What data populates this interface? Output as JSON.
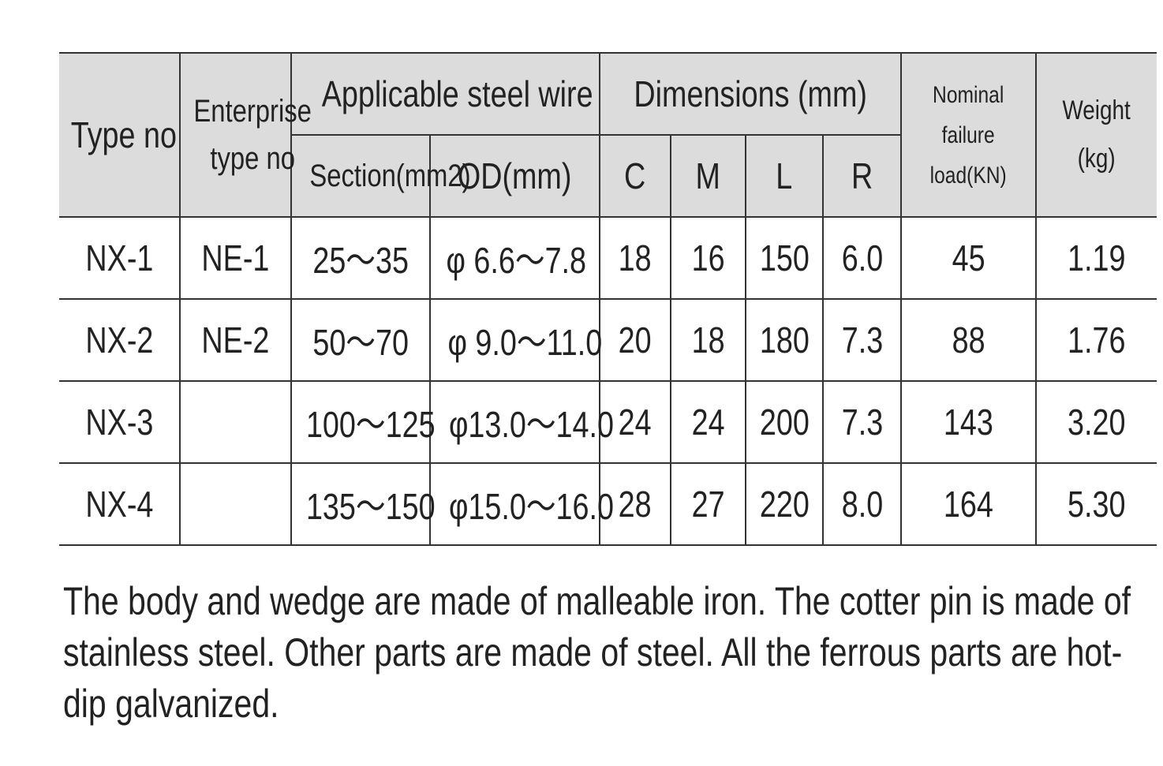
{
  "table": {
    "header": {
      "type_no": "Type no",
      "enterprise_type_no": [
        "Enterprise",
        "type no"
      ],
      "applicable_steel_wire": "Applicable steel wire",
      "section": "Section(mm2)",
      "od": "OD(mm)",
      "dimensions": "Dimensions (mm)",
      "c": "C",
      "m": "M",
      "l": "L",
      "r": "R",
      "nominal_failure_load": [
        "Nominal",
        "failure",
        "load(KN)"
      ],
      "weight": [
        "Weight",
        "(kg)"
      ]
    },
    "rows": [
      {
        "type_no": "NX-1",
        "enterprise_type_no": "NE-1",
        "section": "25～35",
        "od": "φ 6.6～7.8",
        "c": "18",
        "m": "16",
        "l": "150",
        "r": "6.0",
        "load": "45",
        "weight": "1.19"
      },
      {
        "type_no": "NX-2",
        "enterprise_type_no": "NE-2",
        "section": "50～70",
        "od": "φ 9.0～11.0",
        "c": "20",
        "m": "18",
        "l": "180",
        "r": "7.3",
        "load": "88",
        "weight": "1.76"
      },
      {
        "type_no": "NX-3",
        "section": "100～125",
        "od": "φ13.0～14.0",
        "c": "24",
        "m": "24",
        "l": "200",
        "r": "7.3",
        "load": "143",
        "weight": "3.20"
      },
      {
        "type_no": "NX-4",
        "section": "135～150",
        "od": "φ15.0～16.0",
        "c": "28",
        "m": "27",
        "l": "220",
        "r": "8.0",
        "load": "164",
        "weight": "5.30"
      }
    ]
  },
  "note": "The body and wedge are made of malleable iron. The cotter pin is made of stainless steel. Other parts are made of steel. All the ferrous parts are hot-dip galvanized."
}
